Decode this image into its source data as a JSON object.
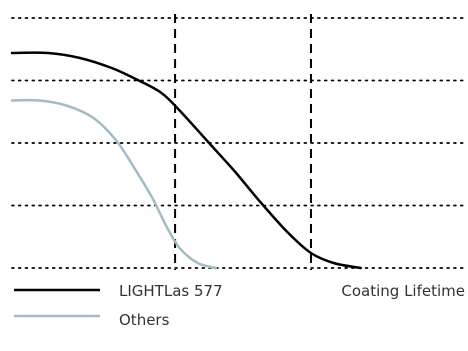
{
  "chart_data": {
    "type": "line",
    "title": "",
    "xlabel": "",
    "ylabel": "",
    "x_axis_note": "Coating Lifetime",
    "grid": "dotted horizontal",
    "legend": "bottom-left",
    "xlim": [
      0,
      1
    ],
    "ylim": [
      0,
      1
    ],
    "gridlines_y": [
      0.0,
      0.25,
      0.5,
      0.75,
      1.0
    ],
    "reference_x": [
      0.36,
      0.66
    ],
    "series": [
      {
        "name": "LIGHTLas 577",
        "color": "#000000",
        "points": [
          [
            0.0,
            0.86
          ],
          [
            0.08,
            0.86
          ],
          [
            0.15,
            0.84
          ],
          [
            0.22,
            0.8
          ],
          [
            0.28,
            0.75
          ],
          [
            0.33,
            0.7
          ],
          [
            0.37,
            0.63
          ],
          [
            0.43,
            0.51
          ],
          [
            0.49,
            0.39
          ],
          [
            0.55,
            0.26
          ],
          [
            0.61,
            0.14
          ],
          [
            0.66,
            0.06
          ],
          [
            0.71,
            0.02
          ],
          [
            0.77,
            0.0
          ]
        ]
      },
      {
        "name": "Others",
        "color": "#a2bcc7",
        "points": [
          [
            0.0,
            0.67
          ],
          [
            0.06,
            0.67
          ],
          [
            0.12,
            0.65
          ],
          [
            0.18,
            0.6
          ],
          [
            0.23,
            0.51
          ],
          [
            0.27,
            0.4
          ],
          [
            0.31,
            0.28
          ],
          [
            0.34,
            0.17
          ],
          [
            0.37,
            0.08
          ],
          [
            0.41,
            0.02
          ],
          [
            0.45,
            0.0
          ]
        ]
      }
    ]
  }
}
